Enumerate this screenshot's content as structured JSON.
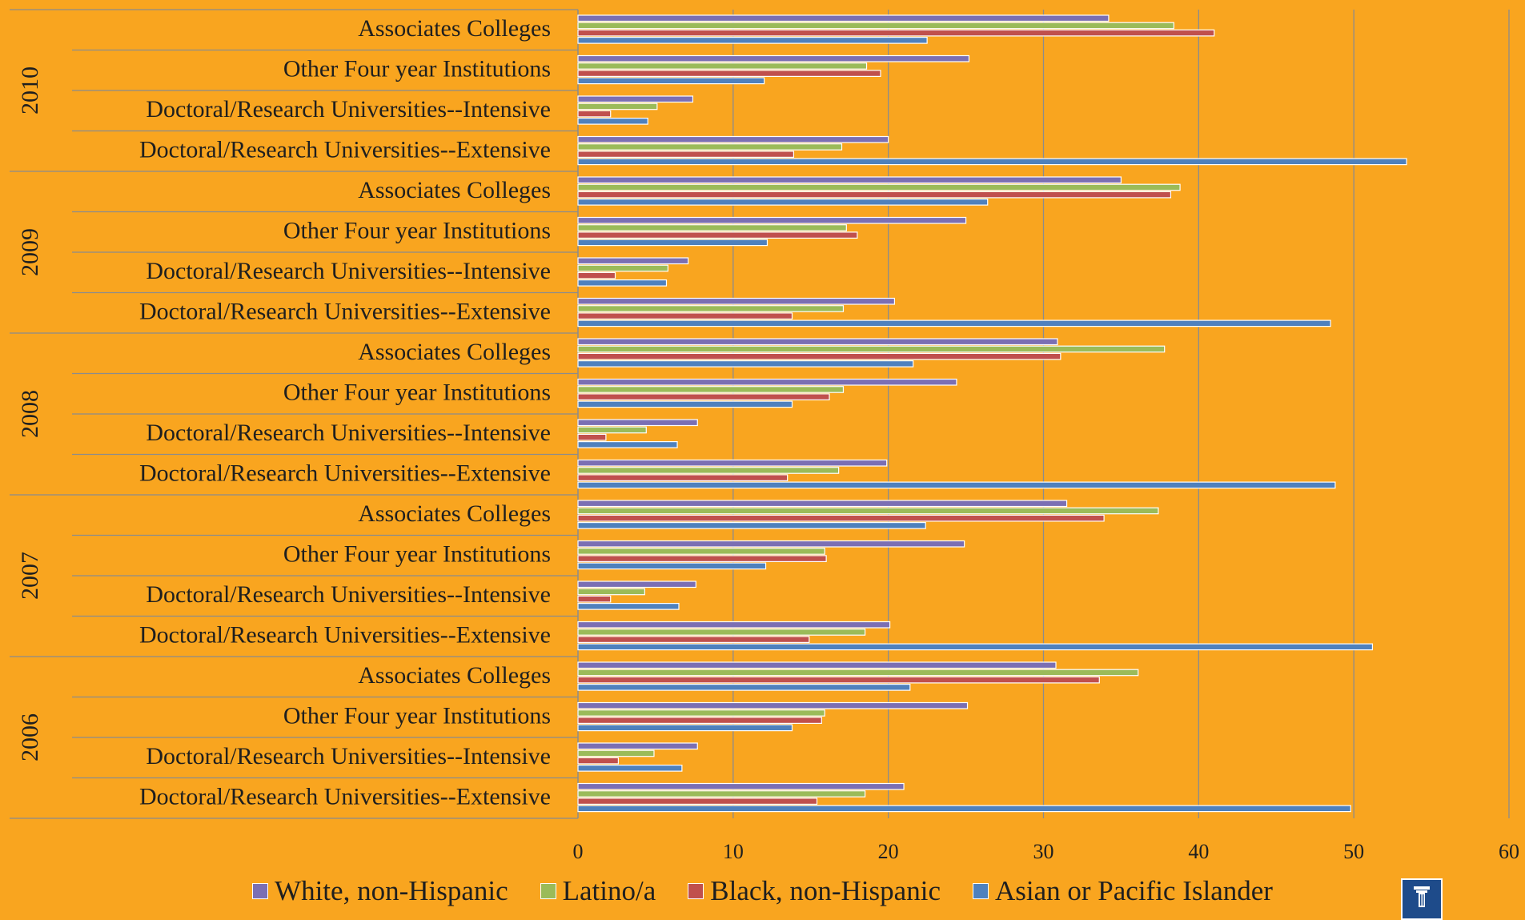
{
  "chart_data": {
    "type": "bar",
    "orientation": "horizontal",
    "groups": [
      "2010",
      "2009",
      "2008",
      "2007",
      "2006"
    ],
    "categories": [
      "Associates Colleges",
      "Other Four year Institutions",
      "Doctoral/Research Universities--Intensive",
      "Doctoral/Research Universities--Extensive"
    ],
    "series": [
      {
        "name": "White, non-Hispanic",
        "color": "#7B6FB3",
        "values": [
          [
            34.2,
            25.2,
            7.4,
            20.0
          ],
          [
            35.0,
            25.0,
            7.1,
            20.4
          ],
          [
            30.9,
            24.4,
            7.7,
            19.9
          ],
          [
            31.5,
            24.9,
            7.6,
            20.1
          ],
          [
            30.8,
            25.1,
            7.7,
            21.0
          ]
        ]
      },
      {
        "name": "Latino/a",
        "color": "#9BBB59",
        "values": [
          [
            38.4,
            18.6,
            5.1,
            17.0
          ],
          [
            38.8,
            17.3,
            5.8,
            17.1
          ],
          [
            37.8,
            17.1,
            4.4,
            16.8
          ],
          [
            37.4,
            15.9,
            4.3,
            18.5
          ],
          [
            36.1,
            15.9,
            4.9,
            18.5
          ]
        ]
      },
      {
        "name": "Black, non-Hispanic",
        "color": "#C0504D",
        "values": [
          [
            41.0,
            19.5,
            2.1,
            13.9
          ],
          [
            38.2,
            18.0,
            2.4,
            13.8
          ],
          [
            31.1,
            16.2,
            1.8,
            13.5
          ],
          [
            33.9,
            16.0,
            2.1,
            14.9
          ],
          [
            33.6,
            15.7,
            2.6,
            15.4
          ]
        ]
      },
      {
        "name": "Asian or Pacific Islander",
        "color": "#4F81BD",
        "values": [
          [
            22.5,
            12.0,
            4.5,
            53.4
          ],
          [
            26.4,
            12.2,
            5.7,
            48.5
          ],
          [
            21.6,
            13.8,
            6.4,
            48.8
          ],
          [
            22.4,
            12.1,
            6.5,
            51.2
          ],
          [
            21.4,
            13.8,
            6.7,
            49.8
          ]
        ]
      }
    ],
    "xlim": [
      0,
      60
    ],
    "xticks": [
      0,
      10,
      20,
      30,
      40,
      50,
      60
    ],
    "grid": true,
    "legend_position": "bottom"
  },
  "colors": {
    "background": "#F9A51F",
    "gridline": "#8C8C8C",
    "bar_outline": "#FFFFFF",
    "text": "#1F1F1F",
    "logo": "#1E4B8A"
  },
  "logo_icon": "university-column-icon"
}
